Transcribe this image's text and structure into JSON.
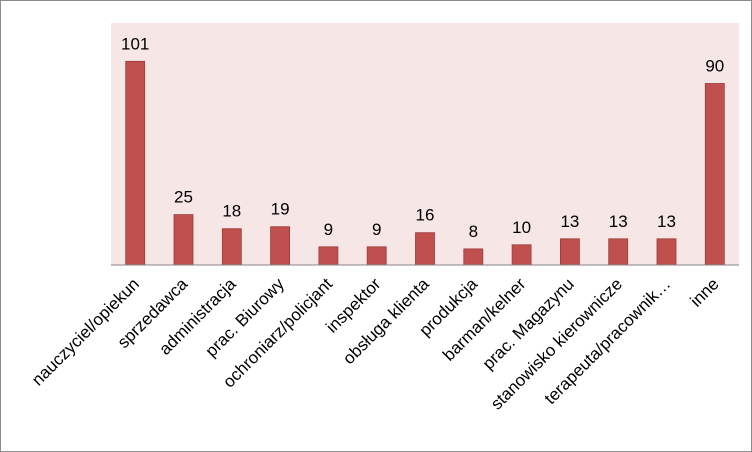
{
  "chart_data": {
    "type": "bar",
    "categories": [
      "nauczyciel/opiekun",
      "sprzedawca",
      "administracja",
      "prac. Biurowy",
      "ochroniarz/policjant",
      "inspektor",
      "obsługa klienta",
      "produkcja",
      "barman/kelner",
      "prac. Magazynu",
      "stanowisko kierownicze",
      "terapeuta/pracownik…",
      "inne"
    ],
    "values": [
      101,
      25,
      18,
      19,
      9,
      9,
      16,
      8,
      10,
      13,
      13,
      13,
      90
    ],
    "ylim": [
      0,
      120
    ],
    "grid": false,
    "legend": "none",
    "colors": {
      "bar": "#c0504d",
      "bar_edge": "#9a3a37",
      "plot_area": "#f7e6e6",
      "axis": "#868686"
    }
  }
}
